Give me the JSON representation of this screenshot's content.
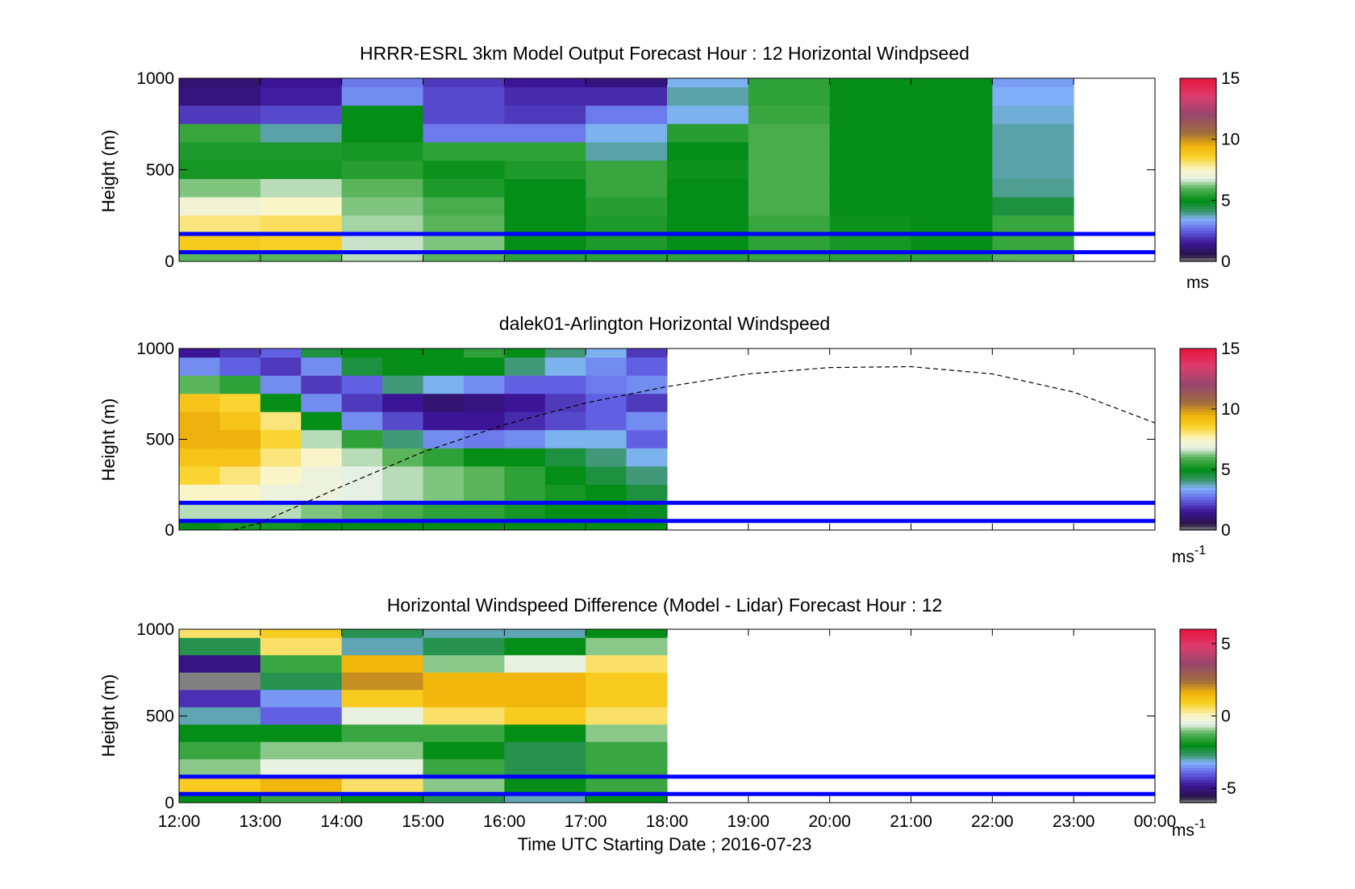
{
  "chart_data": [
    {
      "type": "heatmap",
      "title": "HRRR-ESRL 3km Model Output   Forecast Hour : 12 Horizontal Windpseed",
      "ylabel": "Height (m)",
      "xlim": [
        "12:00",
        "00:00"
      ],
      "ylim": [
        0,
        1000
      ],
      "yticks": [
        "0",
        "500",
        "1000"
      ],
      "reference_lines_m": [
        150,
        50
      ],
      "reference_line_color": "#0000ff",
      "colorbar": {
        "ticks": [
          "0",
          "5",
          "10",
          "15"
        ],
        "range": [
          0,
          15
        ],
        "unit_label": "ms",
        "unit_sup": ""
      },
      "grid_heights_m": [
        1000,
        900,
        800,
        700,
        600,
        500,
        400,
        300,
        200,
        100,
        0
      ],
      "x": [
        "12:00",
        "13:00",
        "14:00",
        "15:00",
        "16:00",
        "17:00",
        "18:00",
        "19:00",
        "20:00",
        "21:00",
        "22:00"
      ],
      "z": [
        [
          1.0,
          1.5,
          2.8,
          2.0,
          1.5,
          1.2,
          3.5,
          5.5,
          5.0,
          5.0,
          3.2
        ],
        [
          1.2,
          1.6,
          3.0,
          2.2,
          1.8,
          1.8,
          3.8,
          5.5,
          5.0,
          5.0,
          3.4
        ],
        [
          2.0,
          2.2,
          5.0,
          2.2,
          2.0,
          2.8,
          3.5,
          5.6,
          5.0,
          5.0,
          3.6
        ],
        [
          5.6,
          3.8,
          5.0,
          2.8,
          2.8,
          3.5,
          5.4,
          5.8,
          5.0,
          5.0,
          3.8
        ],
        [
          5.3,
          5.3,
          5.2,
          5.5,
          5.5,
          3.8,
          5.0,
          5.8,
          5.0,
          5.0,
          3.8
        ],
        [
          5.2,
          5.2,
          5.4,
          5.1,
          5.3,
          5.6,
          5.1,
          5.8,
          5.0,
          5.0,
          3.8
        ],
        [
          6.2,
          6.5,
          6.0,
          5.3,
          5.0,
          5.6,
          5.0,
          5.8,
          5.0,
          5.0,
          3.9
        ],
        [
          7.2,
          7.5,
          6.2,
          5.8,
          5.0,
          5.4,
          5.0,
          5.8,
          5.0,
          5.0,
          4.5
        ],
        [
          8.0,
          8.2,
          6.4,
          6.0,
          5.0,
          5.3,
          5.0,
          5.6,
          5.1,
          5.0,
          5.6
        ],
        [
          8.8,
          8.6,
          6.6,
          6.2,
          5.0,
          5.3,
          5.0,
          5.5,
          5.2,
          5.0,
          5.6
        ],
        [
          6.0,
          6.0,
          6.5,
          6.0,
          5.5,
          5.5,
          5.5,
          5.6,
          5.5,
          5.5,
          6.0
        ]
      ]
    },
    {
      "type": "heatmap",
      "title": "dalek01-Arlington  Horizontal Windspeed",
      "ylabel": "Height (m)",
      "xlim": [
        "12:00",
        "00:00"
      ],
      "ylim": [
        0,
        1000
      ],
      "yticks": [
        "0",
        "500",
        "1000"
      ],
      "reference_lines_m": [
        150,
        50
      ],
      "reference_line_color": "#0000ff",
      "colorbar": {
        "ticks": [
          "0",
          "5",
          "10",
          "15"
        ],
        "range": [
          0,
          15
        ],
        "unit_label": "ms",
        "unit_sup": "-1"
      },
      "grid_heights_m": [
        1000,
        900,
        800,
        700,
        600,
        500,
        400,
        300,
        200,
        100,
        0
      ],
      "x": [
        "12:00",
        "12:30",
        "13:00",
        "13:30",
        "14:00",
        "14:30",
        "15:00",
        "15:30",
        "16:00",
        "16:30",
        "17:00",
        "17:30"
      ],
      "z": [
        [
          1.5,
          2.0,
          2.5,
          4.5,
          5.0,
          5.0,
          5.0,
          5.5,
          5.0,
          4.0,
          3.5,
          2.0
        ],
        [
          3.0,
          2.5,
          2.0,
          3.0,
          4.5,
          5.0,
          5.0,
          5.0,
          4.0,
          3.5,
          3.0,
          2.5
        ],
        [
          6.0,
          5.5,
          3.0,
          2.0,
          2.5,
          4.0,
          3.5,
          3.0,
          2.5,
          2.5,
          2.8,
          3.0
        ],
        [
          9.0,
          8.5,
          5.0,
          3.0,
          2.0,
          1.5,
          1.0,
          1.2,
          1.5,
          2.0,
          2.5,
          2.0
        ],
        [
          9.5,
          9.0,
          8.0,
          5.0,
          3.0,
          2.2,
          1.5,
          1.5,
          1.8,
          2.2,
          2.5,
          3.0
        ],
        [
          9.5,
          9.5,
          8.5,
          6.5,
          5.5,
          4.0,
          3.0,
          2.8,
          3.0,
          3.5,
          3.5,
          2.5
        ],
        [
          9.0,
          9.0,
          8.0,
          7.5,
          6.5,
          6.0,
          5.5,
          5.0,
          5.0,
          4.5,
          4.0,
          3.5
        ],
        [
          8.5,
          8.0,
          7.5,
          7.0,
          6.8,
          6.5,
          6.2,
          6.0,
          5.5,
          5.0,
          4.5,
          4.0
        ],
        [
          7.5,
          7.5,
          7.0,
          7.0,
          6.8,
          6.5,
          6.2,
          6.0,
          5.5,
          5.2,
          5.0,
          4.5
        ],
        [
          6.5,
          6.5,
          6.5,
          6.2,
          6.0,
          5.8,
          5.5,
          5.5,
          5.2,
          5.0,
          5.0,
          4.8
        ],
        [
          5.0,
          5.2,
          5.2,
          5.0,
          5.0,
          5.0,
          5.0,
          5.0,
          5.0,
          5.0,
          5.0,
          5.0
        ]
      ],
      "overlay_curve": {
        "x": [
          "12:40",
          "13:00",
          "14:00",
          "15:00",
          "16:00",
          "17:00",
          "18:00",
          "19:00",
          "20:00",
          "21:00",
          "22:00",
          "23:00",
          "00:00"
        ],
        "y": [
          0,
          40,
          240,
          430,
          580,
          700,
          790,
          860,
          895,
          900,
          860,
          760,
          590
        ]
      }
    },
    {
      "type": "heatmap",
      "title": "Horizontal Windspeed Difference (Model - Lidar) Forecast Hour : 12",
      "xlabel": "Time UTC  Starting Date ; 2016-07-23",
      "ylabel": "Height (m)",
      "xlim": [
        "12:00",
        "00:00"
      ],
      "ylim": [
        0,
        1000
      ],
      "yticks": [
        "0",
        "500",
        "1000"
      ],
      "xticks": [
        "12:00",
        "13:00",
        "14:00",
        "15:00",
        "16:00",
        "17:00",
        "18:00",
        "19:00",
        "20:00",
        "21:00",
        "22:00",
        "23:00",
        "00:00"
      ],
      "reference_lines_m": [
        150,
        50
      ],
      "reference_line_color": "#0000ff",
      "colorbar": {
        "ticks": [
          "-5",
          "0",
          "5"
        ],
        "range": [
          -6,
          6
        ],
        "unit_label": "ms",
        "unit_sup": "-1"
      },
      "grid_heights_m": [
        1000,
        900,
        800,
        700,
        600,
        500,
        400,
        300,
        200,
        100,
        0
      ],
      "x": [
        "12:00",
        "13:00",
        "14:00",
        "15:00",
        "16:00",
        "17:00"
      ],
      "z": [
        [
          0.5,
          1.0,
          -2.5,
          -3.0,
          -3.0,
          -2.0
        ],
        [
          -2.5,
          0.5,
          -3.0,
          -2.5,
          -2.0,
          -1.0
        ],
        [
          -5.0,
          -1.5,
          1.5,
          -1.0,
          -0.5,
          0.5
        ],
        [
          -6.5,
          -2.5,
          2.0,
          1.5,
          1.5,
          1.0
        ],
        [
          -4.5,
          -3.5,
          1.0,
          1.5,
          1.5,
          1.0
        ],
        [
          -3.0,
          -4.0,
          -0.5,
          0.5,
          1.0,
          0.5
        ],
        [
          -2.0,
          -2.0,
          -1.5,
          -1.5,
          -2.0,
          -1.0
        ],
        [
          -1.5,
          -1.0,
          -1.0,
          -2.0,
          -2.5,
          -1.5
        ],
        [
          -1.0,
          -0.5,
          -0.5,
          -1.5,
          -2.5,
          -1.5
        ],
        [
          1.0,
          1.5,
          0.5,
          -1.0,
          -2.0,
          -1.5
        ],
        [
          -2.0,
          -1.5,
          -2.0,
          -2.5,
          -3.0,
          -2.0
        ]
      ]
    }
  ]
}
